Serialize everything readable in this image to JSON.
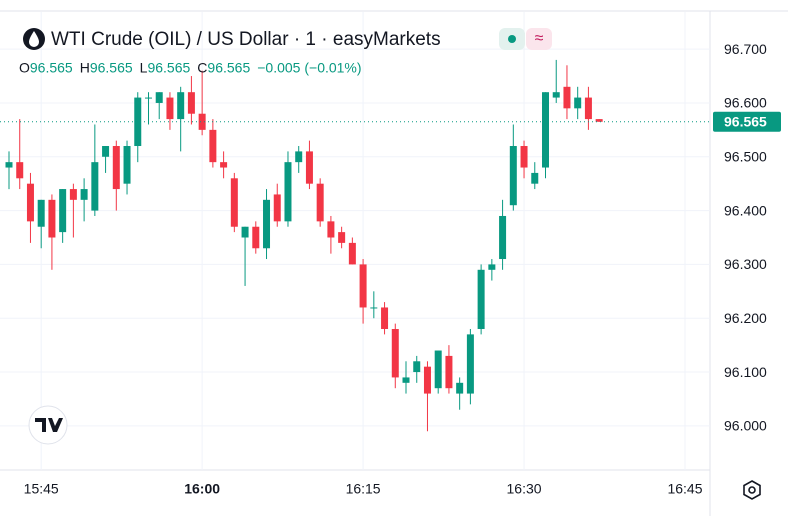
{
  "chart_data": {
    "type": "candlestick",
    "title": "WTI Crude (OIL) / US Dollar · 1 · easyMarkets",
    "legend_labels": [
      "O",
      "H",
      "L",
      "C"
    ],
    "legend_values": [
      96.565,
      96.565,
      96.565,
      96.565
    ],
    "change": "−0.005 (−0.01%)",
    "last_price": {
      "value": 96.565,
      "label": "96.565"
    },
    "up_color": "#089981",
    "down_color": "#f23645",
    "grid": true,
    "ylim": [
      95.918,
      96.769
    ],
    "yticks": [
      {
        "value": 96.0,
        "label": "96.000"
      },
      {
        "value": 96.1,
        "label": "96.100"
      },
      {
        "value": 96.2,
        "label": "96.200"
      },
      {
        "value": 96.3,
        "label": "96.300"
      },
      {
        "value": 96.4,
        "label": "96.400"
      },
      {
        "value": 96.5,
        "label": "96.500"
      },
      {
        "value": 96.6,
        "label": "96.600"
      },
      {
        "value": 96.7,
        "label": "96.700"
      }
    ],
    "categories": [
      null,
      null,
      null,
      "15:45",
      null,
      null,
      null,
      null,
      null,
      null,
      null,
      null,
      null,
      null,
      null,
      null,
      null,
      null,
      "16:00",
      null,
      null,
      null,
      null,
      null,
      null,
      null,
      null,
      null,
      null,
      null,
      null,
      null,
      null,
      "16:15",
      null,
      null,
      null,
      null,
      null,
      null,
      null,
      null,
      null,
      null,
      null,
      null,
      null,
      null,
      "16:30",
      null,
      null,
      null,
      null,
      null,
      null,
      null,
      null,
      null,
      null,
      null,
      null,
      null,
      null,
      "16:45"
    ],
    "open": [
      96.48,
      96.49,
      96.45,
      96.37,
      96.42,
      96.36,
      96.44,
      96.42,
      96.4,
      96.5,
      96.52,
      96.45,
      96.52,
      96.61,
      96.6,
      96.61,
      96.57,
      96.62,
      96.58,
      96.55,
      96.49,
      96.46,
      96.35,
      96.37,
      96.33,
      96.43,
      96.38,
      96.49,
      96.51,
      96.45,
      96.38,
      96.36,
      96.34,
      96.3,
      96.22,
      96.22,
      96.18,
      96.08,
      96.1,
      96.11,
      96.07,
      96.13,
      96.06,
      96.06,
      96.18,
      96.29,
      96.31,
      96.41,
      96.52,
      96.45,
      96.48,
      96.61,
      96.63,
      96.59,
      96.61,
      96.57,
      null,
      null,
      null,
      null,
      null,
      null,
      null,
      null
    ],
    "high": [
      96.51,
      96.57,
      96.47,
      96.42,
      96.43,
      96.44,
      96.45,
      96.46,
      96.56,
      96.52,
      96.53,
      96.53,
      96.62,
      96.62,
      96.62,
      96.62,
      96.63,
      96.65,
      96.66,
      96.57,
      96.51,
      96.47,
      96.37,
      96.38,
      96.44,
      96.45,
      96.51,
      96.52,
      96.53,
      96.46,
      96.39,
      96.37,
      96.35,
      96.31,
      96.25,
      96.23,
      96.19,
      96.12,
      96.13,
      96.12,
      96.14,
      96.15,
      96.09,
      96.18,
      96.3,
      96.31,
      96.42,
      96.56,
      96.53,
      96.49,
      96.62,
      96.68,
      96.67,
      96.63,
      96.63,
      96.57,
      null,
      null,
      null,
      null,
      null,
      null,
      null,
      null
    ],
    "low": [
      96.44,
      96.44,
      96.34,
      96.33,
      96.29,
      96.34,
      96.35,
      96.38,
      96.39,
      96.47,
      96.4,
      96.43,
      96.49,
      96.56,
      96.57,
      96.55,
      96.51,
      96.56,
      96.54,
      96.48,
      96.46,
      96.36,
      96.26,
      96.32,
      96.31,
      96.37,
      96.37,
      96.47,
      96.44,
      96.37,
      96.32,
      96.33,
      96.3,
      96.19,
      96.2,
      96.17,
      96.07,
      96.06,
      96.08,
      95.99,
      96.06,
      96.06,
      96.03,
      96.04,
      96.17,
      96.27,
      96.29,
      96.4,
      96.46,
      96.44,
      96.46,
      96.6,
      96.57,
      96.57,
      96.55,
      96.565,
      null,
      null,
      null,
      null,
      null,
      null,
      null,
      null
    ],
    "close": [
      96.49,
      96.46,
      96.38,
      96.42,
      96.35,
      96.44,
      96.42,
      96.44,
      96.49,
      96.52,
      96.44,
      96.52,
      96.61,
      96.61,
      96.62,
      96.57,
      96.62,
      96.58,
      96.55,
      96.49,
      96.48,
      96.37,
      96.37,
      96.33,
      96.42,
      96.38,
      96.49,
      96.51,
      96.45,
      96.38,
      96.35,
      96.34,
      96.3,
      96.22,
      96.22,
      96.18,
      96.09,
      96.09,
      96.12,
      96.06,
      96.14,
      96.07,
      96.08,
      96.17,
      96.29,
      96.3,
      96.39,
      96.52,
      96.48,
      96.47,
      96.62,
      96.62,
      96.59,
      96.61,
      96.57,
      96.565,
      null,
      null,
      null,
      null,
      null,
      null,
      null,
      null
    ]
  }
}
